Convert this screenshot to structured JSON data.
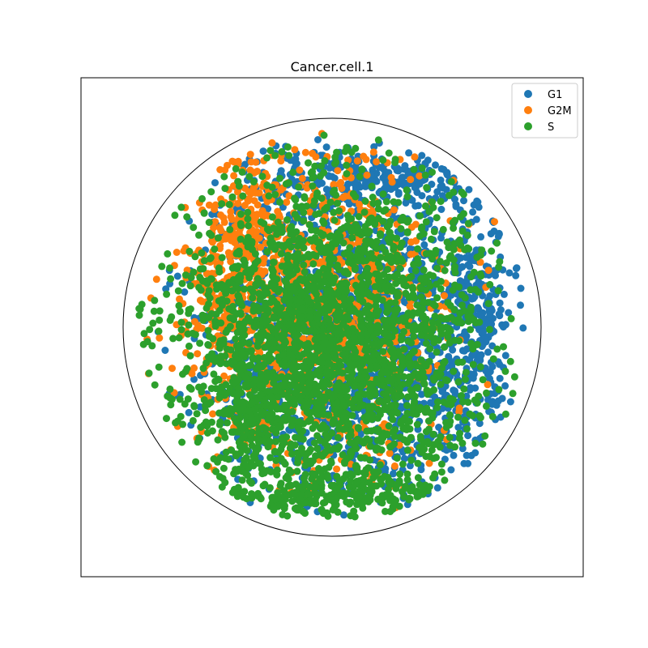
{
  "chart_data": {
    "type": "scatter",
    "title": "Cancer.cell.1",
    "xlabel": "",
    "ylabel": "",
    "axes_ticks": false,
    "boundary": {
      "shape": "circle",
      "center": [
        0,
        0
      ],
      "radius": 1.0
    },
    "xlim": [
      -1.2,
      1.2
    ],
    "ylim": [
      -1.2,
      1.2
    ],
    "legend_position": "top-right",
    "draw_order": [
      "G1",
      "G2M",
      "S"
    ],
    "series": [
      {
        "name": "G1",
        "color": "#1f77b4",
        "description": "dense cloud, right-shifted",
        "clusters": [
          {
            "cx": 0.1,
            "cy": -0.05,
            "sx": 0.36,
            "sy": 0.43,
            "n": 1700
          },
          {
            "cx": 0.66,
            "cy": 0.0,
            "sx": 0.1,
            "sy": 0.28,
            "n": 260
          },
          {
            "cx": 0.25,
            "cy": 0.72,
            "sx": 0.32,
            "sy": 0.06,
            "n": 220
          }
        ]
      },
      {
        "name": "G2M",
        "color": "#ff7f0e",
        "description": "cloud shifted up-left",
        "clusters": [
          {
            "cx": -0.08,
            "cy": 0.1,
            "sx": 0.32,
            "sy": 0.4,
            "n": 900
          },
          {
            "cx": -0.42,
            "cy": 0.42,
            "sx": 0.08,
            "sy": 0.22,
            "n": 220
          },
          {
            "cx": -0.55,
            "cy": 0.1,
            "sx": 0.07,
            "sy": 0.12,
            "n": 60
          }
        ]
      },
      {
        "name": "S",
        "color": "#2ca02c",
        "description": "densest cloud, centered slightly left and down",
        "clusters": [
          {
            "cx": -0.02,
            "cy": -0.08,
            "sx": 0.38,
            "sy": 0.43,
            "n": 2600
          },
          {
            "cx": -0.4,
            "cy": -0.35,
            "sx": 0.1,
            "sy": 0.18,
            "n": 180
          },
          {
            "cx": 0.05,
            "cy": -0.8,
            "sx": 0.32,
            "sy": 0.05,
            "n": 180
          }
        ]
      }
    ]
  }
}
